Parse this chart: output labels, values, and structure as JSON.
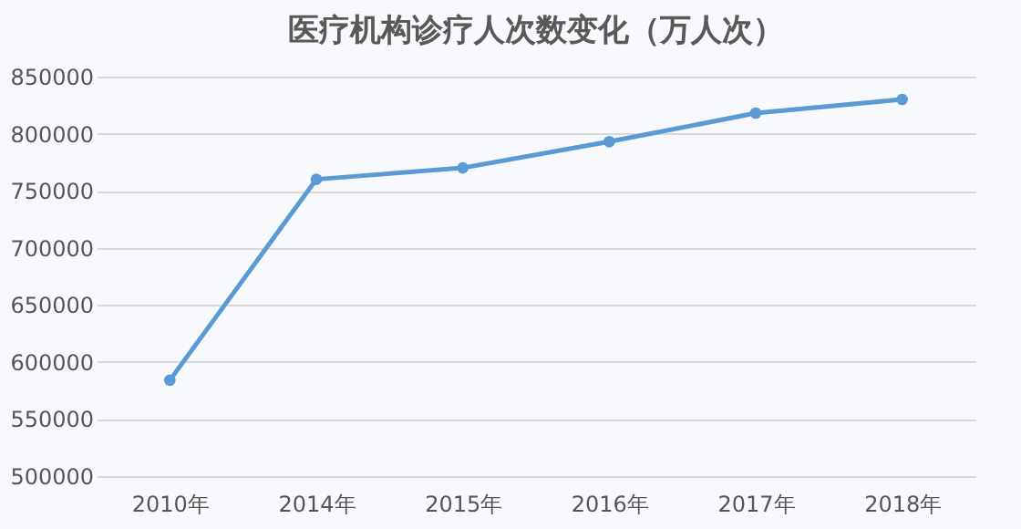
{
  "chart_data": {
    "type": "line",
    "title": "医疗机构诊疗人次数变化（万人次）",
    "categories": [
      "2010年",
      "2014年",
      "2015年",
      "2016年",
      "2017年",
      "2018年"
    ],
    "series": [
      {
        "color": "#5b9bd5",
        "values": [
          584000,
          760000,
          770000,
          793000,
          818000,
          830000
        ]
      }
    ],
    "ylim": [
      500000,
      850000
    ],
    "yticks": [
      500000,
      550000,
      600000,
      650000,
      700000,
      750000,
      800000,
      850000
    ],
    "grid": "y",
    "marker": "circle"
  }
}
